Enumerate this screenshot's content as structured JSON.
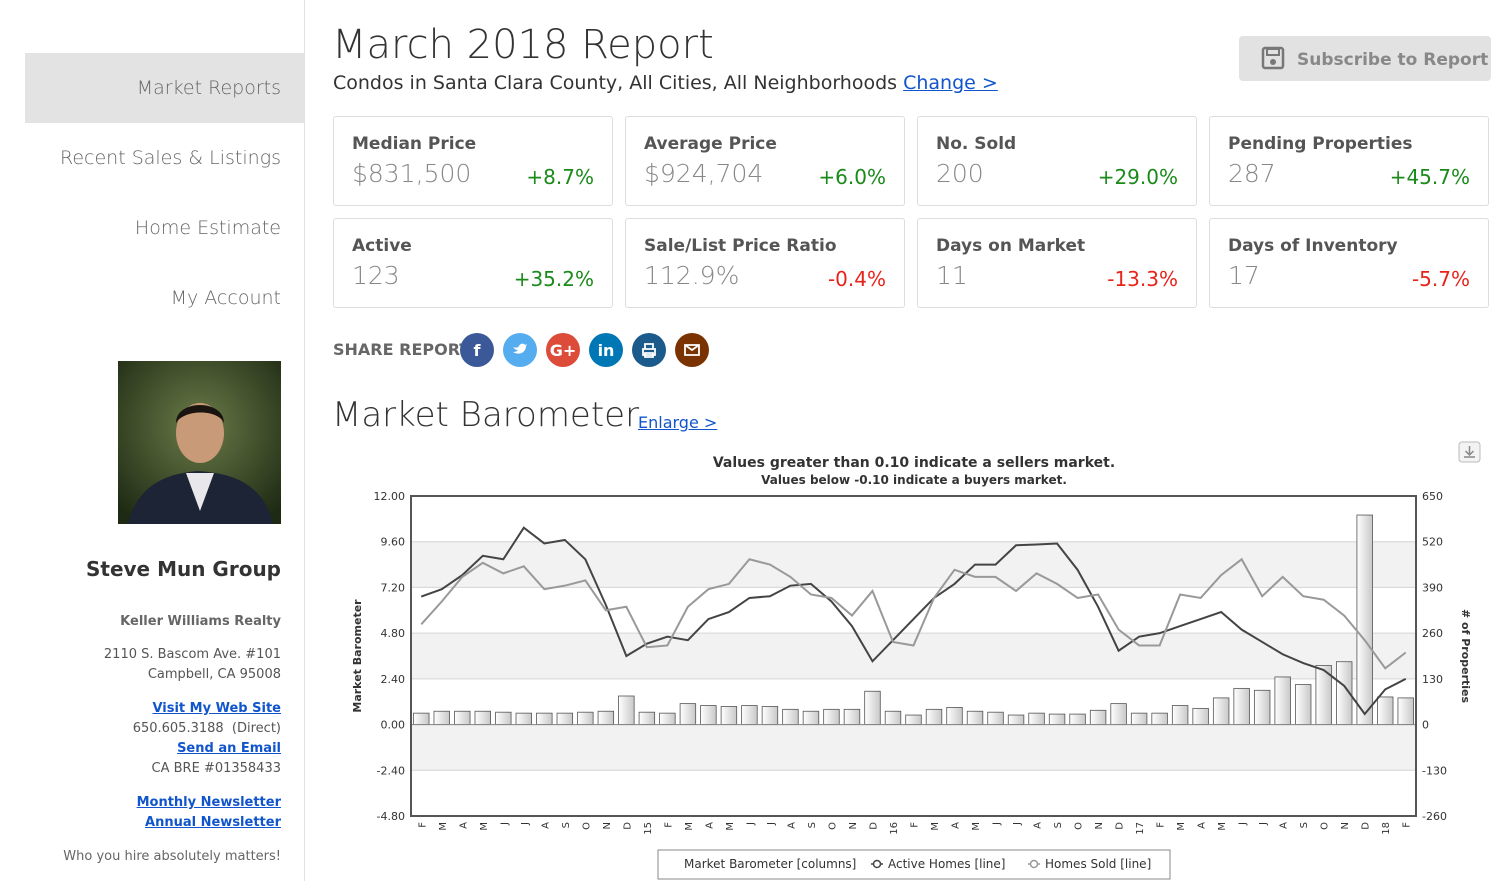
{
  "sidebar": {
    "nav": [
      "Market Reports",
      "Recent Sales & Listings",
      "Home Estimate",
      "My Account"
    ],
    "agent_name": "Steve Mun Group",
    "company": "Keller Williams Realty",
    "address": [
      "2110 S. Bascom Ave. #101",
      "Campbell, CA 95008"
    ],
    "website_link": "Visit My Web Site",
    "phone": "650.605.3188  (Direct)",
    "email_link": "Send an Email",
    "license": "CA BRE #01358433",
    "newsletters": [
      "Monthly Newsletter",
      "Annual Newsletter"
    ],
    "tagline": "Who you hire absolutely matters!"
  },
  "header": {
    "title": "March 2018 Report",
    "subtitle": "Condos in Santa Clara County, All Cities, All Neighborhoods",
    "change_link": "Change >",
    "subscribe": "Subscribe to Report"
  },
  "stats": [
    {
      "label": "Median Price",
      "value": "$831,500",
      "change": "+8.7%",
      "color": "#1a8a1a"
    },
    {
      "label": "Average Price",
      "value": "$924,704",
      "change": "+6.0%",
      "color": "#1a8a1a"
    },
    {
      "label": "No. Sold",
      "value": "200",
      "change": "+29.0%",
      "color": "#1a8a1a"
    },
    {
      "label": "Pending Properties",
      "value": "287",
      "change": "+45.7%",
      "color": "#1a8a1a"
    },
    {
      "label": "Active",
      "value": "123",
      "change": "+35.2%",
      "color": "#1a8a1a"
    },
    {
      "label": "Sale/List Price Ratio",
      "value": "112.9%",
      "change": "-0.4%",
      "color": "#e8231a"
    },
    {
      "label": "Days on Market",
      "value": "11",
      "change": "-13.3%",
      "color": "#e8231a"
    },
    {
      "label": "Days of Inventory",
      "value": "17",
      "change": "-5.7%",
      "color": "#e8231a"
    }
  ],
  "share": {
    "label": "SHARE REPORT",
    "icons": [
      {
        "label": "f",
        "color": "#3b5998"
      },
      {
        "label": "",
        "color": "#55acee"
      },
      {
        "label": "G+",
        "color": "#dd4b39"
      },
      {
        "label": "in",
        "color": "#0077b5"
      },
      {
        "label": "",
        "color": "#1a5b8c"
      },
      {
        "label": "",
        "color": "#7a3300"
      }
    ]
  },
  "section": {
    "title": "Market Barometer",
    "link": "Enlarge >"
  },
  "chart_data": {
    "type": "combo",
    "title": "Values greater than 0.10 indicate a sellers market.",
    "subtitle": "Values below -0.10 indicate a buyers market.",
    "y_label": "Market Barometer",
    "y2_label": "# of Properties",
    "categories": [
      "F",
      "M",
      "A",
      "M",
      "J",
      "J",
      "A",
      "S",
      "O",
      "N",
      "D",
      "15",
      "F",
      "M",
      "A",
      "M",
      "J",
      "J",
      "A",
      "S",
      "O",
      "N",
      "D",
      "16",
      "F",
      "M",
      "A",
      "M",
      "J",
      "J",
      "A",
      "S",
      "O",
      "N",
      "D",
      "17",
      "F",
      "M",
      "A",
      "M",
      "J",
      "J",
      "A",
      "S",
      "O",
      "N",
      "D",
      "18",
      "F"
    ],
    "ylim": [
      -4.8,
      12
    ],
    "yticks": [
      {
        "value": -4.8,
        "label": "-4.80"
      },
      {
        "value": -2.4,
        "label": "-2.40"
      },
      {
        "value": 0,
        "label": "0.00"
      },
      {
        "value": 2.4,
        "label": "2.40"
      },
      {
        "value": 4.8,
        "label": "4.80"
      },
      {
        "value": 7.2,
        "label": "7.20"
      },
      {
        "value": 9.6,
        "label": "9.60"
      },
      {
        "value": 12,
        "label": "12.00"
      }
    ],
    "y2lim": [
      -260,
      650
    ],
    "y2ticks": [
      -260,
      -130,
      0,
      130,
      260,
      390,
      520,
      650
    ],
    "grid": true,
    "series": [
      {
        "name": "Market Barometer [columns]",
        "type": "bar",
        "color": "#c8c8c8",
        "values": [
          0.6,
          0.7,
          0.7,
          0.7,
          0.65,
          0.6,
          0.6,
          0.6,
          0.65,
          0.7,
          1.5,
          0.65,
          0.6,
          1.1,
          1.0,
          0.95,
          1.0,
          0.95,
          0.8,
          0.7,
          0.8,
          0.8,
          1.75,
          0.7,
          0.5,
          0.8,
          0.9,
          0.7,
          0.65,
          0.5,
          0.6,
          0.55,
          0.55,
          0.75,
          1.1,
          0.6,
          0.6,
          1.0,
          0.85,
          1.4,
          1.9,
          1.8,
          2.5,
          2.1,
          3.1,
          3.3,
          11.0,
          1.45,
          1.4
        ]
      },
      {
        "name": "Active Homes [line]",
        "type": "line",
        "axis": "y2",
        "color": "#444444",
        "values": [
          364,
          385,
          425,
          480,
          470,
          560,
          515,
          525,
          470,
          340,
          195,
          230,
          250,
          240,
          300,
          320,
          360,
          365,
          395,
          400,
          350,
          280,
          180,
          240,
          300,
          360,
          400,
          455,
          455,
          510,
          512,
          515,
          440,
          335,
          210,
          250,
          260,
          280,
          300,
          320,
          270,
          235,
          200,
          175,
          155,
          110,
          30,
          100,
          130
        ]
      },
      {
        "name": "Homes Sold [line]",
        "type": "line",
        "axis": "y2",
        "color": "#999999",
        "values": [
          285,
          350,
          420,
          460,
          430,
          450,
          385,
          395,
          410,
          325,
          335,
          220,
          225,
          335,
          385,
          400,
          470,
          455,
          420,
          370,
          360,
          310,
          380,
          235,
          225,
          360,
          440,
          420,
          420,
          380,
          430,
          400,
          360,
          370,
          270,
          225,
          225,
          370,
          360,
          425,
          470,
          365,
          420,
          365,
          355,
          310,
          240,
          160,
          205
        ]
      }
    ]
  }
}
